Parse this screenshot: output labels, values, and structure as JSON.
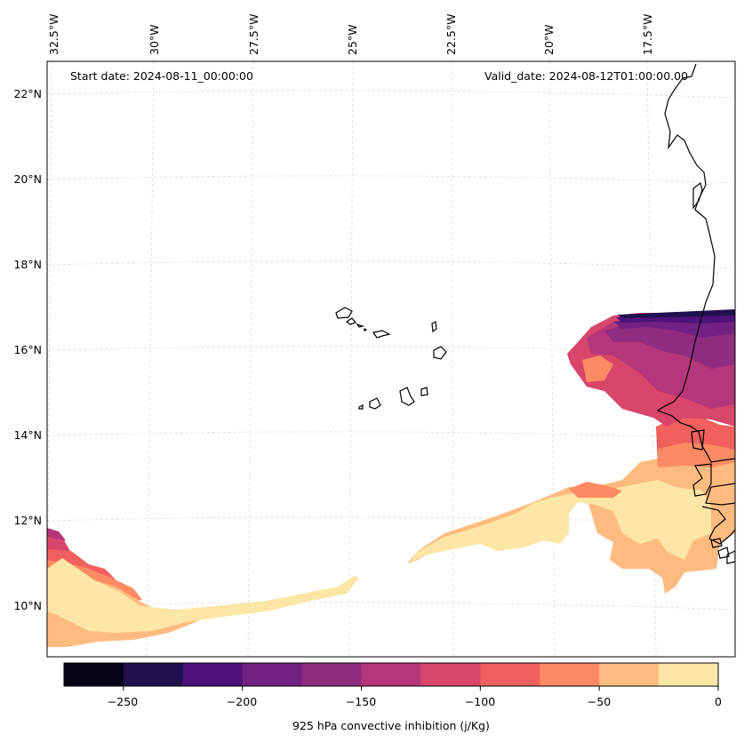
{
  "map": {
    "annotations": {
      "start_date": "Start date: 2024-08-11_00:00:00",
      "valid_date": "Valid_date: 2024-08-12T01:00:00.00"
    },
    "longitude_labels": [
      "32.5°W",
      "30°W",
      "27.5°W",
      "25°W",
      "22.5°W",
      "20°W",
      "17.5°W"
    ],
    "latitude_labels": [
      "22°N",
      "20°N",
      "18°N",
      "16°N",
      "14°N",
      "12°N",
      "10°N"
    ]
  },
  "colorbar": {
    "title": "925 hPa convective inhibition (j/Kg)",
    "tick_labels": [
      "−250",
      "−200",
      "−150",
      "−100",
      "−50",
      "0"
    ],
    "levels": [
      -275,
      -250,
      -225,
      -200,
      -175,
      -150,
      -125,
      -100,
      -75,
      -50,
      -25,
      0
    ],
    "colors": [
      "#050416",
      "#21114e",
      "#4f127b",
      "#712181",
      "#902c80",
      "#b5367a",
      "#d8466c",
      "#f1605d",
      "#fc8a62",
      "#febb80",
      "#fce6a6"
    ]
  }
}
